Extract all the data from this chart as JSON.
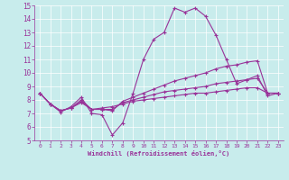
{
  "title": "",
  "xlabel": "Windchill (Refroidissement éolien,°C)",
  "ylabel": "",
  "bg_color": "#c8ecec",
  "line_color": "#993399",
  "grid_color": "#ffffff",
  "xlim": [
    -0.5,
    23.5
  ],
  "ylim": [
    5,
    15
  ],
  "xticks": [
    0,
    1,
    2,
    3,
    4,
    5,
    6,
    7,
    8,
    9,
    10,
    11,
    12,
    13,
    14,
    15,
    16,
    17,
    18,
    19,
    20,
    21,
    22,
    23
  ],
  "yticks": [
    5,
    6,
    7,
    8,
    9,
    10,
    11,
    12,
    13,
    14,
    15
  ],
  "series": [
    [
      8.5,
      7.7,
      7.1,
      7.5,
      8.2,
      7.0,
      6.9,
      5.4,
      6.3,
      8.5,
      11.0,
      12.5,
      13.0,
      14.8,
      14.5,
      14.8,
      14.2,
      12.8,
      11.0,
      9.2,
      9.5,
      9.8,
      8.3,
      8.5
    ],
    [
      8.5,
      7.7,
      7.2,
      7.4,
      8.0,
      7.3,
      7.3,
      7.2,
      7.9,
      8.2,
      8.5,
      8.8,
      9.1,
      9.4,
      9.6,
      9.8,
      10.0,
      10.3,
      10.5,
      10.6,
      10.8,
      10.9,
      8.5,
      8.5
    ],
    [
      8.5,
      7.7,
      7.2,
      7.4,
      7.9,
      7.3,
      7.3,
      7.3,
      7.8,
      8.0,
      8.2,
      8.4,
      8.6,
      8.7,
      8.8,
      8.9,
      9.0,
      9.2,
      9.3,
      9.4,
      9.5,
      9.6,
      8.5,
      8.5
    ],
    [
      8.5,
      7.7,
      7.2,
      7.4,
      7.8,
      7.3,
      7.4,
      7.5,
      7.7,
      7.9,
      8.0,
      8.1,
      8.2,
      8.3,
      8.4,
      8.5,
      8.5,
      8.6,
      8.7,
      8.8,
      8.9,
      8.9,
      8.5,
      8.5
    ]
  ]
}
